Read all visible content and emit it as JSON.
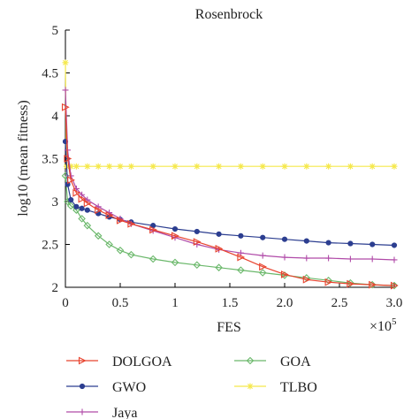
{
  "chart_data": {
    "type": "line",
    "title": "Rosenbrock",
    "xlabel": "FES",
    "ylabel": "log10 (mean fitness)",
    "x_multiplier": "×10",
    "x_exponent": "5",
    "xlim": [
      0,
      3.0
    ],
    "ylim": [
      2,
      5
    ],
    "xticks": [
      "0",
      "0.5",
      "1",
      "1.5",
      "2.0",
      "2.5",
      "3.0"
    ],
    "yticks": [
      "2",
      "2.5",
      "3",
      "3.5",
      "4",
      "4.5",
      "5"
    ],
    "grid": false,
    "legend_position": "bottom",
    "series": [
      {
        "name": "DOLGOA",
        "color": "#e8432e",
        "marker": "triangle-right",
        "x": [
          0,
          0.02,
          0.05,
          0.1,
          0.15,
          0.2,
          0.3,
          0.4,
          0.5,
          0.6,
          0.8,
          1.0,
          1.2,
          1.4,
          1.6,
          1.8,
          2.0,
          2.2,
          2.4,
          2.6,
          2.8,
          3.0
        ],
        "y": [
          4.1,
          3.5,
          3.25,
          3.1,
          3.03,
          2.98,
          2.9,
          2.84,
          2.78,
          2.74,
          2.67,
          2.6,
          2.53,
          2.45,
          2.35,
          2.24,
          2.15,
          2.09,
          2.06,
          2.04,
          2.03,
          2.02
        ]
      },
      {
        "name": "GOA",
        "color": "#6bb86b",
        "marker": "diamond",
        "x": [
          0,
          0.02,
          0.05,
          0.1,
          0.15,
          0.2,
          0.3,
          0.4,
          0.5,
          0.6,
          0.8,
          1.0,
          1.2,
          1.4,
          1.6,
          1.8,
          2.0,
          2.2,
          2.4,
          2.6,
          2.8,
          3.0
        ],
        "y": [
          3.3,
          3.0,
          2.95,
          2.9,
          2.8,
          2.72,
          2.6,
          2.5,
          2.43,
          2.38,
          2.33,
          2.29,
          2.26,
          2.23,
          2.2,
          2.17,
          2.14,
          2.11,
          2.08,
          2.05,
          2.03,
          2.02
        ]
      },
      {
        "name": "GWO",
        "color": "#2c3e90",
        "marker": "circle",
        "x": [
          0,
          0.02,
          0.05,
          0.1,
          0.15,
          0.2,
          0.3,
          0.4,
          0.5,
          0.6,
          0.8,
          1.0,
          1.2,
          1.4,
          1.6,
          1.8,
          2.0,
          2.2,
          2.4,
          2.6,
          2.8,
          3.0
        ],
        "y": [
          3.7,
          3.2,
          3.02,
          2.94,
          2.92,
          2.9,
          2.86,
          2.82,
          2.79,
          2.76,
          2.72,
          2.68,
          2.65,
          2.62,
          2.6,
          2.58,
          2.56,
          2.54,
          2.52,
          2.51,
          2.5,
          2.49
        ]
      },
      {
        "name": "TLBO",
        "color": "#f5e84a",
        "marker": "star",
        "x": [
          0,
          0.01,
          0.05,
          0.1,
          0.2,
          0.3,
          0.4,
          0.5,
          0.6,
          0.8,
          1.0,
          1.2,
          1.4,
          1.6,
          1.8,
          2.0,
          2.2,
          2.4,
          2.6,
          2.8,
          3.0
        ],
        "y": [
          4.62,
          3.41,
          3.41,
          3.41,
          3.41,
          3.41,
          3.41,
          3.41,
          3.41,
          3.41,
          3.41,
          3.41,
          3.41,
          3.41,
          3.41,
          3.41,
          3.41,
          3.41,
          3.41,
          3.41,
          3.41
        ]
      },
      {
        "name": "Jaya",
        "color": "#b04aa8",
        "marker": "plus",
        "x": [
          0,
          0.02,
          0.05,
          0.1,
          0.15,
          0.2,
          0.3,
          0.4,
          0.5,
          0.6,
          0.8,
          1.0,
          1.2,
          1.4,
          1.6,
          1.8,
          2.0,
          2.2,
          2.4,
          2.6,
          2.8,
          3.0
        ],
        "y": [
          4.3,
          3.6,
          3.3,
          3.15,
          3.08,
          3.02,
          2.94,
          2.87,
          2.8,
          2.74,
          2.66,
          2.58,
          2.5,
          2.44,
          2.4,
          2.37,
          2.35,
          2.34,
          2.34,
          2.33,
          2.33,
          2.32
        ]
      }
    ]
  }
}
